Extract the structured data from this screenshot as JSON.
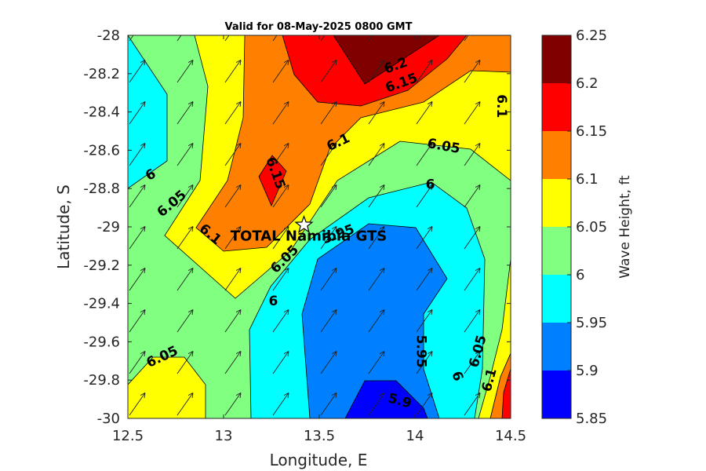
{
  "chart_data": {
    "type": "contour",
    "title": "Valid for 08-May-2025 0800 GMT",
    "xlabel": "Longitude, E",
    "ylabel": "Latitude, S",
    "xlim": [
      12.5,
      14.5
    ],
    "ylim": [
      -30,
      -28
    ],
    "xticks": [
      "12.5",
      "13",
      "13.5",
      "14",
      "14.5"
    ],
    "yticks": [
      "-28",
      "-28.2",
      "-28.4",
      "-28.6",
      "-28.8",
      "-29",
      "-29.2",
      "-29.4",
      "-29.6",
      "-29.8",
      "-30"
    ],
    "colorbar": {
      "label": "Wave Height, ft",
      "levels": [
        "5.85",
        "5.9",
        "5.95",
        "6",
        "6.05",
        "6.1",
        "6.15",
        "6.2",
        "6.25"
      ],
      "colors": [
        "#0000ff",
        "#0080ff",
        "#00ffff",
        "#80ff80",
        "#ffff00",
        "#ff8000",
        "#ff0000",
        "#800000"
      ]
    },
    "contour_labels": [
      {
        "text": "6.2",
        "lon": 13.9,
        "lat": -28.16
      },
      {
        "text": "6.15",
        "lon": 13.93,
        "lat": -28.25
      },
      {
        "text": "6.1",
        "lon": 14.45,
        "lat": -28.37
      },
      {
        "text": "6.1",
        "lon": 13.6,
        "lat": -28.56
      },
      {
        "text": "6.05",
        "lon": 14.15,
        "lat": -28.58
      },
      {
        "text": "6.15",
        "lon": 13.27,
        "lat": -28.72
      },
      {
        "text": "6",
        "lon": 12.62,
        "lat": -28.73
      },
      {
        "text": "6",
        "lon": 14.08,
        "lat": -28.78
      },
      {
        "text": "6.05",
        "lon": 12.73,
        "lat": -28.88
      },
      {
        "text": "6.1",
        "lon": 12.93,
        "lat": -29.04
      },
      {
        "text": "5.95",
        "lon": 13.6,
        "lat": -29.04
      },
      {
        "text": "6.05",
        "lon": 13.32,
        "lat": -29.17
      },
      {
        "text": "6",
        "lon": 13.26,
        "lat": -29.39
      },
      {
        "text": "5.95",
        "lon": 14.03,
        "lat": -29.65
      },
      {
        "text": "6.05",
        "lon": 14.33,
        "lat": -29.65
      },
      {
        "text": "6.05",
        "lon": 12.68,
        "lat": -29.68
      },
      {
        "text": "6",
        "lon": 14.22,
        "lat": -29.78
      },
      {
        "text": "6.1",
        "lon": 14.39,
        "lat": -29.8
      },
      {
        "text": "5.9",
        "lon": 13.92,
        "lat": -29.91
      }
    ],
    "station": {
      "name": "TOTAL Namibia GTS",
      "lon": 13.42,
      "lat": -28.99
    },
    "wind_vector_angle_deg": 55,
    "grid": false
  }
}
